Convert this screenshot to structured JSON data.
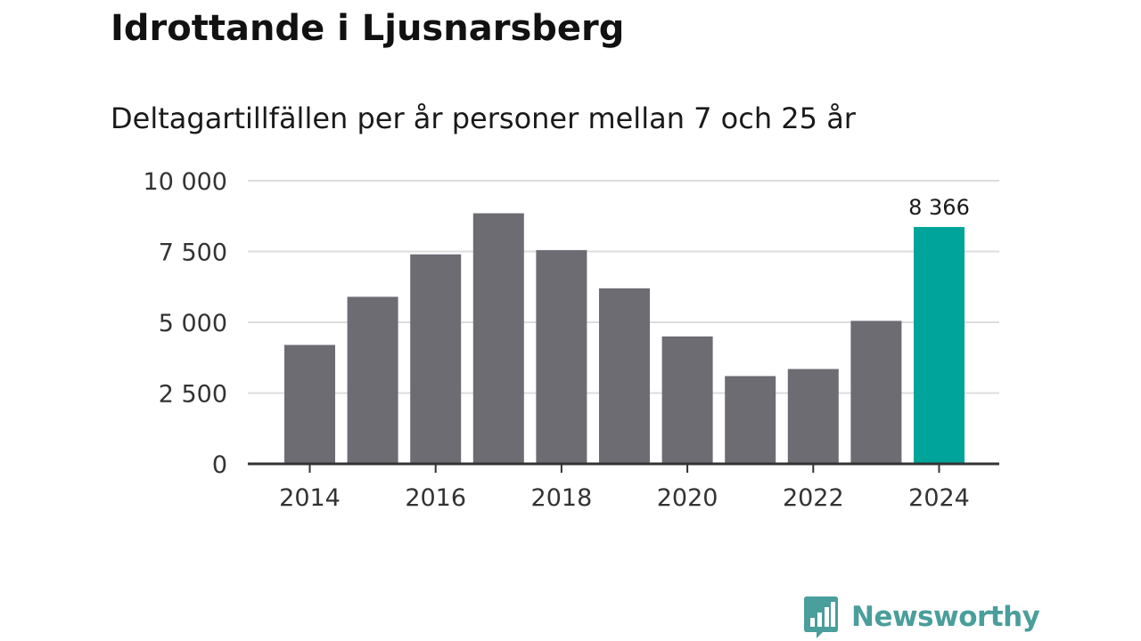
{
  "title": "Idrottande i Ljusnarsberg",
  "subtitle": "Deltagartillfällen per år personer mellan 7 och 25 år",
  "brand": {
    "name": "Newsworthy",
    "icon": "bar-chart-bubble-icon",
    "color": "#4a9e9b"
  },
  "colors": {
    "bar": "#6d6c73",
    "highlight": "#00a49a",
    "grid": "#dddddd",
    "axis": "#333333",
    "text": "#333333"
  },
  "chart_data": {
    "type": "bar",
    "title": "Idrottande i Ljusnarsberg",
    "subtitle": "Deltagartillfällen per år personer mellan 7 och 25 år",
    "xlabel": "",
    "ylabel": "",
    "categories": [
      "2014",
      "2015",
      "2016",
      "2017",
      "2018",
      "2019",
      "2020",
      "2021",
      "2022",
      "2023",
      "2024"
    ],
    "values": [
      4200,
      5900,
      7400,
      8850,
      7550,
      6200,
      4500,
      3100,
      3350,
      5050,
      8366
    ],
    "highlight_index": 10,
    "highlight_label": "8 366",
    "ylim": [
      0,
      10000
    ],
    "y_ticks": [
      0,
      2500,
      5000,
      7500,
      10000
    ],
    "y_tick_labels": [
      "0",
      "2 500",
      "5 000",
      "7 500",
      "10 000"
    ],
    "x_tick_labels": [
      "2014",
      "",
      "2016",
      "",
      "2018",
      "",
      "2020",
      "",
      "2022",
      "",
      "2024"
    ],
    "grid": true,
    "legend": "none"
  }
}
